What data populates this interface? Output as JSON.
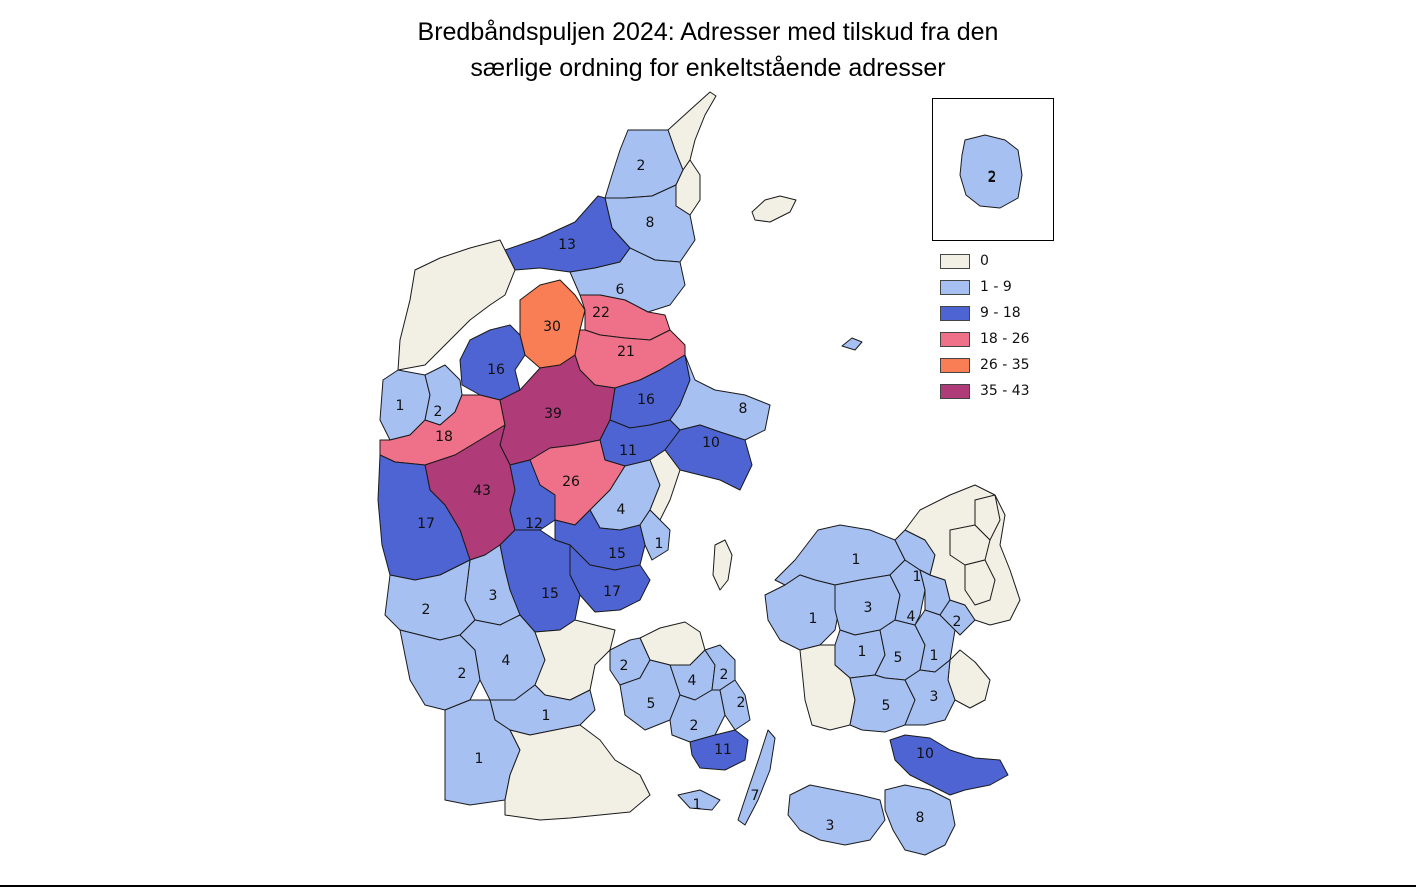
{
  "title_line1": "Bredbåndspuljen 2024: Adresser med tilskud fra den",
  "title_line2": "særlige ordning for enkeltstående adresser",
  "colors": {
    "c0": "#f2efe4",
    "c1": "#a7c0f2",
    "c2": "#4e64d2",
    "c3": "#ef7189",
    "c4": "#f97d55",
    "c5": "#b03b79"
  },
  "legend": [
    {
      "label": "0",
      "color": "#f2efe4"
    },
    {
      "label": "1 - 9",
      "color": "#a7c0f2"
    },
    {
      "label": "9 - 18",
      "color": "#4e64d2"
    },
    {
      "label": "18 - 26",
      "color": "#ef7189"
    },
    {
      "label": "26 - 35",
      "color": "#f97d55"
    },
    {
      "label": "35 - 43",
      "color": "#b03b79"
    }
  ],
  "labels": [
    "2",
    "8",
    "13",
    "6",
    "30",
    "22",
    "21",
    "16",
    "1",
    "2",
    "39",
    "16",
    "8",
    "18",
    "11",
    "10",
    "43",
    "26",
    "4",
    "17",
    "12",
    "1",
    "15",
    "2",
    "3",
    "15",
    "17",
    "2",
    "4",
    "1",
    "1",
    "2",
    "4",
    "2",
    "5",
    "2",
    "2",
    "11",
    "7",
    "1",
    "1",
    "3",
    "1",
    "4",
    "1",
    "2",
    "1",
    "5",
    "1",
    "5",
    "3",
    "10",
    "3",
    "8",
    "2"
  ],
  "inset_label": "2"
}
